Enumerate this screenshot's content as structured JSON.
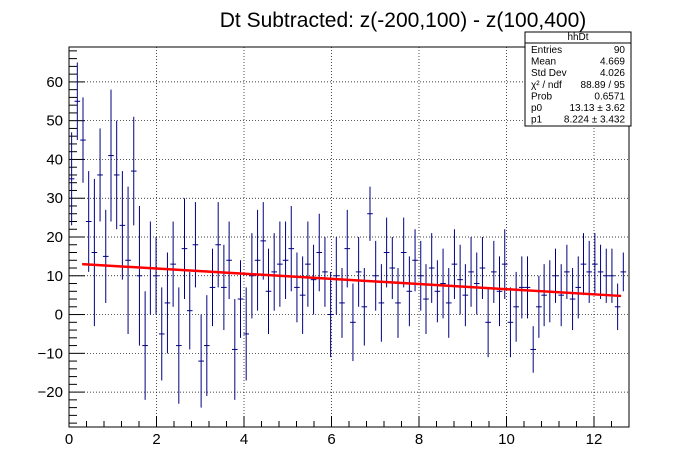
{
  "chart_data": {
    "type": "scatter",
    "title": "Dt Subtracted: z(-200,100) - z(100,400)",
    "xlabel": "",
    "ylabel": "",
    "xlim": [
      0,
      12.8
    ],
    "ylim": [
      -29,
      69
    ],
    "x_ticks": [
      0,
      2,
      4,
      6,
      8,
      10,
      12
    ],
    "y_ticks": [
      -20,
      -10,
      0,
      10,
      20,
      30,
      40,
      50,
      60
    ],
    "grid": true,
    "stats_box": {
      "title": "hhDt",
      "rows": [
        {
          "label": "Entries",
          "value": "90"
        },
        {
          "label": "Mean",
          "value": "4.669"
        },
        {
          "label": "Std Dev",
          "value": "4.026"
        },
        {
          "label": "χ² / ndf",
          "value": "88.89 / 95"
        },
        {
          "label": "Prob",
          "value": "0.6571"
        },
        {
          "label": "p0",
          "value": "13.13 ± 3.62"
        },
        {
          "label": "p1",
          "value": "8.224 ± 3.432"
        }
      ]
    },
    "bin_width": 0.1286,
    "series": [
      {
        "colors": {
          "points": "#000080",
          "fit": "#ff0000"
        },
        "points": [
          {
            "x": 0.06,
            "y": 35,
            "e": 12
          },
          {
            "x": 0.19,
            "y": 55,
            "e": 10
          },
          {
            "x": 0.32,
            "y": 45,
            "e": 11
          },
          {
            "x": 0.45,
            "y": 24,
            "e": 13
          },
          {
            "x": 0.58,
            "y": 16,
            "e": 19
          },
          {
            "x": 0.71,
            "y": 36,
            "e": 12
          },
          {
            "x": 0.84,
            "y": 15,
            "e": 12
          },
          {
            "x": 0.96,
            "y": 41,
            "e": 17
          },
          {
            "x": 1.09,
            "y": 36,
            "e": 14
          },
          {
            "x": 1.22,
            "y": 23,
            "e": 14
          },
          {
            "x": 1.35,
            "y": 14,
            "e": 19
          },
          {
            "x": 1.48,
            "y": 37,
            "e": 14
          },
          {
            "x": 1.61,
            "y": 10,
            "e": 18
          },
          {
            "x": 1.74,
            "y": -8,
            "e": 14
          },
          {
            "x": 1.86,
            "y": 12,
            "e": 12
          },
          {
            "x": 1.99,
            "y": 10,
            "e": 10
          },
          {
            "x": 2.12,
            "y": -5,
            "e": 12
          },
          {
            "x": 2.25,
            "y": 3,
            "e": 13
          },
          {
            "x": 2.38,
            "y": 13,
            "e": 11
          },
          {
            "x": 2.51,
            "y": -8,
            "e": 15
          },
          {
            "x": 2.64,
            "y": 17,
            "e": 13
          },
          {
            "x": 2.76,
            "y": 1,
            "e": 10
          },
          {
            "x": 2.89,
            "y": 18,
            "e": 11
          },
          {
            "x": 3.02,
            "y": -12,
            "e": 12
          },
          {
            "x": 3.15,
            "y": -8,
            "e": 13
          },
          {
            "x": 3.28,
            "y": 7,
            "e": 10
          },
          {
            "x": 3.41,
            "y": 18,
            "e": 11
          },
          {
            "x": 3.54,
            "y": 7,
            "e": 11
          },
          {
            "x": 3.66,
            "y": 14,
            "e": 10
          },
          {
            "x": 3.79,
            "y": -9,
            "e": 13
          },
          {
            "x": 3.92,
            "y": 4,
            "e": 10
          },
          {
            "x": 4.05,
            "y": -5,
            "e": 12
          },
          {
            "x": 4.18,
            "y": 10,
            "e": 11
          },
          {
            "x": 4.31,
            "y": 14,
            "e": 13
          },
          {
            "x": 4.44,
            "y": 19,
            "e": 10
          },
          {
            "x": 4.56,
            "y": 6,
            "e": 11
          },
          {
            "x": 4.69,
            "y": 11,
            "e": 10
          },
          {
            "x": 4.82,
            "y": 13,
            "e": 11
          },
          {
            "x": 4.95,
            "y": 14,
            "e": 10
          },
          {
            "x": 5.08,
            "y": 17,
            "e": 11
          },
          {
            "x": 5.21,
            "y": 7,
            "e": 9
          },
          {
            "x": 5.34,
            "y": 5,
            "e": 10
          },
          {
            "x": 5.46,
            "y": 13,
            "e": 11
          },
          {
            "x": 5.59,
            "y": 9,
            "e": 9
          },
          {
            "x": 5.72,
            "y": 16,
            "e": 10
          },
          {
            "x": 5.85,
            "y": 11,
            "e": 9
          },
          {
            "x": 5.98,
            "y": 0,
            "e": 11
          },
          {
            "x": 6.11,
            "y": 10,
            "e": 10
          },
          {
            "x": 6.24,
            "y": 3,
            "e": 9
          },
          {
            "x": 6.36,
            "y": 17,
            "e": 10
          },
          {
            "x": 6.49,
            "y": -2,
            "e": 10
          },
          {
            "x": 6.62,
            "y": 11,
            "e": 9
          },
          {
            "x": 6.75,
            "y": 2,
            "e": 10
          },
          {
            "x": 6.88,
            "y": 26,
            "e": 7
          },
          {
            "x": 7.01,
            "y": 10,
            "e": 9
          },
          {
            "x": 7.14,
            "y": 3,
            "e": 10
          },
          {
            "x": 7.26,
            "y": 16,
            "e": 9
          },
          {
            "x": 7.39,
            "y": 12,
            "e": 8
          },
          {
            "x": 7.52,
            "y": 3,
            "e": 9
          },
          {
            "x": 7.65,
            "y": 16,
            "e": 9
          },
          {
            "x": 7.78,
            "y": 6,
            "e": 9
          },
          {
            "x": 7.91,
            "y": 14,
            "e": 8
          },
          {
            "x": 8.04,
            "y": 10,
            "e": 9
          },
          {
            "x": 8.16,
            "y": 4,
            "e": 9
          },
          {
            "x": 8.29,
            "y": 12,
            "e": 9
          },
          {
            "x": 8.42,
            "y": 6,
            "e": 8
          },
          {
            "x": 8.55,
            "y": 8,
            "e": 9
          },
          {
            "x": 8.68,
            "y": 3,
            "e": 9
          },
          {
            "x": 8.81,
            "y": 13,
            "e": 9
          },
          {
            "x": 8.94,
            "y": 9,
            "e": 9
          },
          {
            "x": 9.06,
            "y": 5,
            "e": 8
          },
          {
            "x": 9.19,
            "y": 11,
            "e": 9
          },
          {
            "x": 9.32,
            "y": 8,
            "e": 8
          },
          {
            "x": 9.45,
            "y": 12,
            "e": 8
          },
          {
            "x": 9.58,
            "y": -2,
            "e": 9
          },
          {
            "x": 9.71,
            "y": 11,
            "e": 8
          },
          {
            "x": 9.84,
            "y": 6,
            "e": 9
          },
          {
            "x": 9.96,
            "y": 13,
            "e": 9
          },
          {
            "x": 10.09,
            "y": -2,
            "e": 9
          },
          {
            "x": 10.22,
            "y": 2,
            "e": 9
          },
          {
            "x": 10.35,
            "y": 7,
            "e": 8
          },
          {
            "x": 10.48,
            "y": 7,
            "e": 8
          },
          {
            "x": 10.61,
            "y": -9,
            "e": 6
          },
          {
            "x": 10.74,
            "y": 2,
            "e": 8
          },
          {
            "x": 10.86,
            "y": 5,
            "e": 8
          },
          {
            "x": 10.99,
            "y": 6,
            "e": 8
          },
          {
            "x": 11.12,
            "y": 10,
            "e": 7
          },
          {
            "x": 11.25,
            "y": 5,
            "e": 8
          },
          {
            "x": 11.38,
            "y": 11,
            "e": 7
          },
          {
            "x": 11.51,
            "y": 4,
            "e": 8
          },
          {
            "x": 11.64,
            "y": 7,
            "e": 8
          },
          {
            "x": 11.76,
            "y": 13,
            "e": 8
          },
          {
            "x": 11.89,
            "y": 11,
            "e": 8
          },
          {
            "x": 12.02,
            "y": 13,
            "e": 8
          },
          {
            "x": 12.15,
            "y": 11,
            "e": 7
          },
          {
            "x": 12.28,
            "y": 10,
            "e": 7
          },
          {
            "x": 12.41,
            "y": 10,
            "e": 7
          },
          {
            "x": 12.54,
            "y": 2,
            "e": 6
          },
          {
            "x": 12.67,
            "y": 11,
            "e": 5
          }
        ]
      }
    ],
    "fit": {
      "x_start": 0.3,
      "x_end": 12.62,
      "y_start": 13.0,
      "y_end": 4.8
    }
  }
}
